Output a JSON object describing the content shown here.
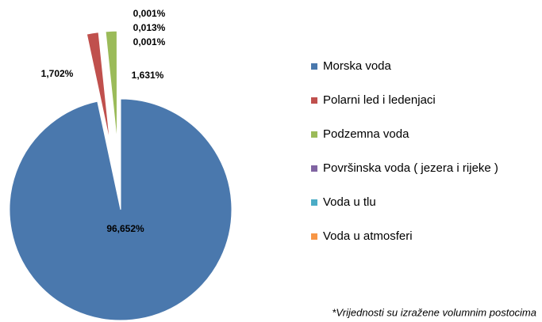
{
  "chart_data": {
    "type": "pie",
    "categories": [
      "Morska voda",
      "Polarni led i ledenjaci",
      "Podzemna voda",
      "Površinska voda ( jezera i rijeke )",
      "Voda u tlu",
      "Voda u atmosferi"
    ],
    "values": [
      96.652,
      1.702,
      1.631,
      0.013,
      0.001,
      0.001
    ],
    "value_labels": [
      "96,652%",
      "1,702%",
      "1,631%",
      "0,013%",
      "0,001%",
      "0,001%"
    ],
    "colors": [
      "#4a78ad",
      "#c0504d",
      "#9bbb59",
      "#8064a2",
      "#4bacc6",
      "#f79646"
    ],
    "legend": "right",
    "annotation": "*Vrijednosti su izražene volumnim postocima"
  }
}
